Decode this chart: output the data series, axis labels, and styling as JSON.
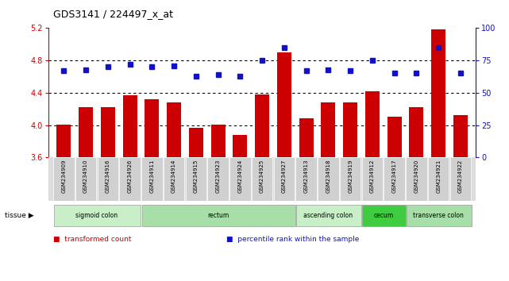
{
  "title": "GDS3141 / 224497_x_at",
  "samples": [
    "GSM234909",
    "GSM234910",
    "GSM234916",
    "GSM234926",
    "GSM234911",
    "GSM234914",
    "GSM234915",
    "GSM234923",
    "GSM234924",
    "GSM234925",
    "GSM234927",
    "GSM234913",
    "GSM234918",
    "GSM234919",
    "GSM234912",
    "GSM234917",
    "GSM234920",
    "GSM234921",
    "GSM234922"
  ],
  "bar_values": [
    4.01,
    4.22,
    4.22,
    4.37,
    4.32,
    4.28,
    3.97,
    4.01,
    3.88,
    4.38,
    4.9,
    4.08,
    4.28,
    4.28,
    4.42,
    4.1,
    4.22,
    5.18,
    4.12
  ],
  "dot_values": [
    67,
    68,
    70,
    72,
    70,
    71,
    63,
    64,
    63,
    75,
    85,
    67,
    68,
    67,
    75,
    65,
    65,
    85,
    65
  ],
  "ylim_left": [
    3.6,
    5.2
  ],
  "ylim_right": [
    0,
    100
  ],
  "yticks_left": [
    3.6,
    4.0,
    4.4,
    4.8,
    5.2
  ],
  "yticks_right": [
    0,
    25,
    50,
    75,
    100
  ],
  "bar_color": "#cc0000",
  "dot_color": "#1111cc",
  "hline_values": [
    4.0,
    4.4,
    4.8
  ],
  "tissue_groups": [
    {
      "label": "sigmoid colon",
      "start": 0,
      "end": 4,
      "color": "#c8efc8"
    },
    {
      "label": "rectum",
      "start": 4,
      "end": 11,
      "color": "#a8dfa8"
    },
    {
      "label": "ascending colon",
      "start": 11,
      "end": 14,
      "color": "#c8efc8"
    },
    {
      "label": "cecum",
      "start": 14,
      "end": 16,
      "color": "#40cc40"
    },
    {
      "label": "transverse colon",
      "start": 16,
      "end": 19,
      "color": "#a8dfa8"
    }
  ],
  "legend_labels": [
    "transformed count",
    "percentile rank within the sample"
  ],
  "legend_colors": [
    "#cc0000",
    "#1111cc"
  ],
  "ylabel_left_color": "#cc0000",
  "ylabel_right_color": "#1111cc",
  "plot_bg_color": "#ffffff",
  "tick_label_bg": "#d8d8d8"
}
